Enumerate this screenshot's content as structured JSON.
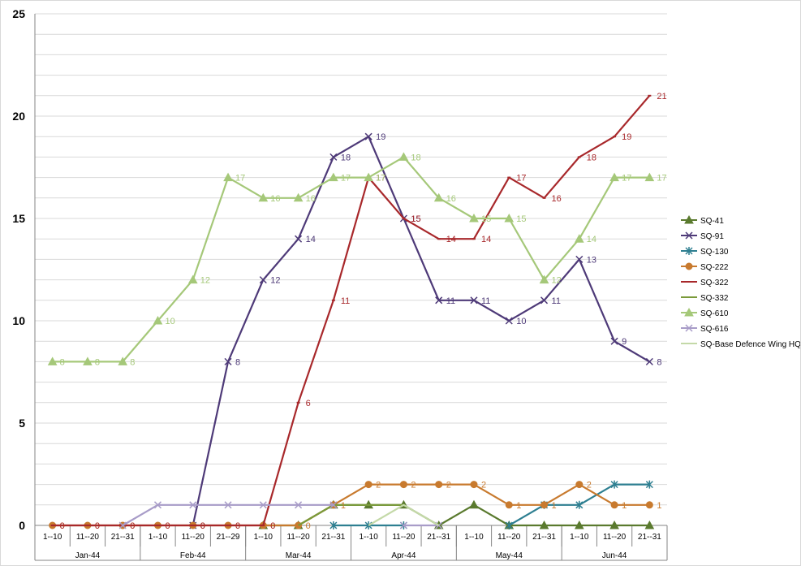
{
  "chart_data": {
    "type": "line",
    "title": "",
    "xlabel": "",
    "ylabel": "",
    "ylim": [
      0,
      25
    ],
    "y_ticks": [
      0,
      5,
      10,
      15,
      20,
      25
    ],
    "grid": "horizontal",
    "legend_position": "right",
    "categories": [
      "1--10",
      "11--20",
      "21--31",
      "1--10",
      "11--20",
      "21--29",
      "1--10",
      "11--20",
      "21--31",
      "1--10",
      "11--20",
      "21--31",
      "1--10",
      "11--20",
      "21--31",
      "1--10",
      "11--20",
      "21--31"
    ],
    "groups": [
      {
        "label": "Jan-44",
        "size": 3
      },
      {
        "label": "Feb-44",
        "size": 3
      },
      {
        "label": "Mar-44",
        "size": 3
      },
      {
        "label": "Apr-44",
        "size": 3
      },
      {
        "label": "May-44",
        "size": 3
      },
      {
        "label": "Jun-44",
        "size": 3
      }
    ],
    "series": [
      {
        "name": "SQ-41",
        "color": "#5a7a2e",
        "marker": "triangle",
        "show_labels": false,
        "values": [
          null,
          null,
          null,
          null,
          null,
          null,
          0,
          0,
          1,
          1,
          1,
          0,
          1,
          0,
          0,
          0,
          0,
          0
        ]
      },
      {
        "name": "SQ-91",
        "color": "#4e3a78",
        "marker": "x",
        "show_labels": true,
        "values": [
          null,
          null,
          null,
          null,
          0,
          8,
          12,
          14,
          18,
          19,
          15,
          11,
          11,
          10,
          11,
          13,
          9,
          8
        ]
      },
      {
        "name": "SQ-130",
        "color": "#2e7f91",
        "marker": "star",
        "show_labels": false,
        "values": [
          null,
          null,
          null,
          null,
          null,
          null,
          null,
          null,
          0,
          0,
          0,
          null,
          null,
          0,
          1,
          1,
          2,
          2
        ]
      },
      {
        "name": "SQ-222",
        "color": "#c87a2e",
        "marker": "circle",
        "show_labels": true,
        "values": [
          0,
          0,
          0,
          0,
          0,
          0,
          0,
          0,
          1,
          2,
          2,
          2,
          2,
          1,
          1,
          2,
          1,
          1
        ]
      },
      {
        "name": "SQ-322",
        "color": "#a8282b",
        "marker": "dash",
        "show_labels": true,
        "values": [
          0,
          0,
          0,
          0,
          0,
          0,
          0,
          6,
          11,
          17,
          15,
          14,
          14,
          17,
          16,
          18,
          19,
          21
        ]
      },
      {
        "name": "SQ-332",
        "color": "#7a9a3a",
        "marker": "none",
        "show_labels": false,
        "values": [
          null,
          null,
          null,
          null,
          null,
          null,
          null,
          0,
          1,
          1,
          1,
          null,
          null,
          null,
          null,
          null,
          null,
          null
        ]
      },
      {
        "name": "SQ-610",
        "color": "#a5c879",
        "marker": "triangle",
        "show_labels": true,
        "values": [
          8,
          8,
          8,
          10,
          12,
          17,
          16,
          16,
          17,
          17,
          18,
          16,
          15,
          15,
          12,
          14,
          17,
          17
        ]
      },
      {
        "name": "SQ-616",
        "color": "#a89cc8",
        "marker": "x",
        "show_labels": false,
        "values": [
          null,
          null,
          0,
          1,
          1,
          1,
          1,
          1,
          1,
          null,
          0,
          0,
          null,
          null,
          null,
          null,
          null,
          null
        ]
      },
      {
        "name": "SQ-Base Defence Wing HQ",
        "color": "#c4d9a8",
        "marker": "none",
        "show_labels": false,
        "values": [
          null,
          null,
          null,
          null,
          null,
          null,
          null,
          null,
          null,
          0,
          1,
          0,
          null,
          null,
          null,
          null,
          null,
          null
        ]
      }
    ]
  }
}
